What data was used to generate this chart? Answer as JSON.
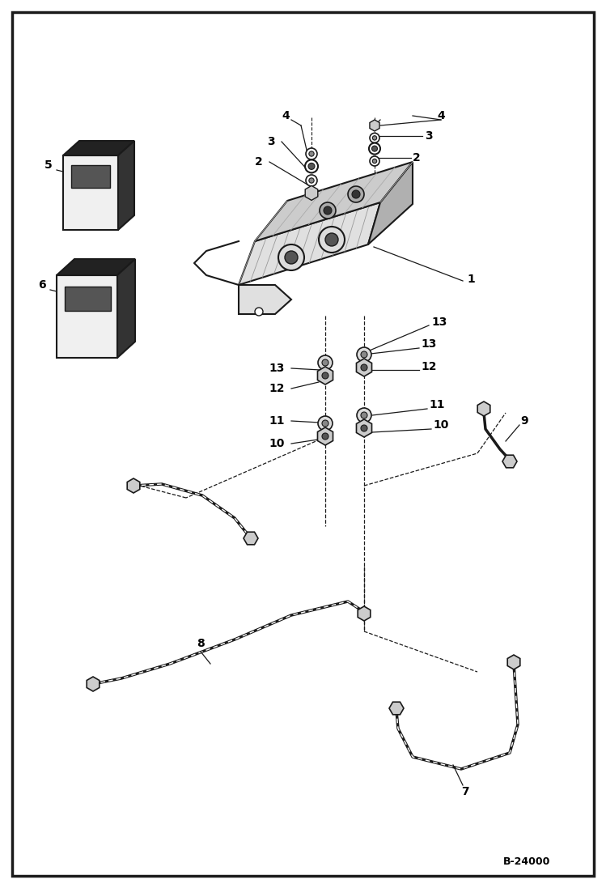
{
  "bg_color": "#ffffff",
  "line_color": "#1a1a1a",
  "bottom_label": "B-24000",
  "fig_width": 7.49,
  "fig_height": 10.97,
  "dpi": 100
}
